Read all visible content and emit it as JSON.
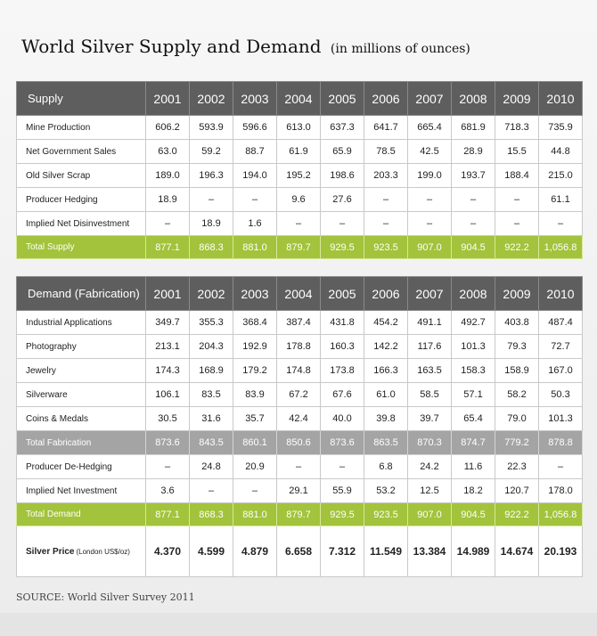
{
  "title": "World Silver Supply and Demand",
  "subtitle": "(in millions of ounces)",
  "supply": {
    "header": [
      "Supply",
      "2001",
      "2002",
      "2003",
      "2004",
      "2005",
      "2006",
      "2007",
      "2008",
      "2009",
      "2010"
    ],
    "rows": [
      [
        "Mine Production",
        "606.2",
        "593.9",
        "596.6",
        "613.0",
        "637.3",
        "641.7",
        "665.4",
        "681.9",
        "718.3",
        "735.9"
      ],
      [
        "Net Government Sales",
        "63.0",
        "59.2",
        "88.7",
        "61.9",
        "65.9",
        "78.5",
        "42.5",
        "28.9",
        "15.5",
        "44.8"
      ],
      [
        "Old Silver Scrap",
        "189.0",
        "196.3",
        "194.0",
        "195.2",
        "198.6",
        "203.3",
        "199.0",
        "193.7",
        "188.4",
        "215.0"
      ],
      [
        "Producer Hedging",
        "18.9",
        "–",
        "–",
        "9.6",
        "27.6",
        "–",
        "–",
        "–",
        "–",
        "61.1"
      ],
      [
        "Implied Net Disinvestment",
        "–",
        "18.9",
        "1.6",
        "–",
        "–",
        "–",
        "–",
        "–",
        "–",
        "–"
      ]
    ],
    "total": [
      "Total Supply",
      "877.1",
      "868.3",
      "881.0",
      "879.7",
      "929.5",
      "923.5",
      "907.0",
      "904.5",
      "922.2",
      "1,056.8"
    ]
  },
  "demand": {
    "header": [
      "Demand (Fabrication)",
      "2001",
      "2002",
      "2003",
      "2004",
      "2005",
      "2006",
      "2007",
      "2008",
      "2009",
      "2010"
    ],
    "rows": [
      [
        "Industrial Applications",
        "349.7",
        "355.3",
        "368.4",
        "387.4",
        "431.8",
        "454.2",
        "491.1",
        "492.7",
        "403.8",
        "487.4"
      ],
      [
        "Photography",
        "213.1",
        "204.3",
        "192.9",
        "178.8",
        "160.3",
        "142.2",
        "117.6",
        "101.3",
        "79.3",
        "72.7"
      ],
      [
        "Jewelry",
        "174.3",
        "168.9",
        "179.2",
        "174.8",
        "173.8",
        "166.3",
        "163.5",
        "158.3",
        "158.9",
        "167.0"
      ],
      [
        "Silverware",
        "106.1",
        "83.5",
        "83.9",
        "67.2",
        "67.6",
        "61.0",
        "58.5",
        "57.1",
        "58.2",
        "50.3"
      ],
      [
        "Coins & Medals",
        "30.5",
        "31.6",
        "35.7",
        "42.4",
        "40.0",
        "39.8",
        "39.7",
        "65.4",
        "79.0",
        "101.3"
      ]
    ],
    "fabrication_total": [
      "Total Fabrication",
      "873.6",
      "843.5",
      "860.1",
      "850.6",
      "873.6",
      "863.5",
      "870.3",
      "874.7",
      "779.2",
      "878.8"
    ],
    "extra_rows": [
      [
        "Producer De-Hedging",
        "–",
        "24.8",
        "20.9",
        "–",
        "–",
        "6.8",
        "24.2",
        "11.6",
        "22.3",
        "–"
      ],
      [
        "Implied Net Investment",
        "3.6",
        "–",
        "–",
        "29.1",
        "55.9",
        "53.2",
        "12.5",
        "18.2",
        "120.7",
        "178.0"
      ]
    ],
    "total": [
      "Total Demand",
      "877.1",
      "868.3",
      "881.0",
      "879.7",
      "929.5",
      "923.5",
      "907.0",
      "904.5",
      "922.2",
      "1,056.8"
    ]
  },
  "silver_price": {
    "label": "Silver Price",
    "unit": "(London US$/oz)",
    "values": [
      "4.370",
      "4.599",
      "4.879",
      "6.658",
      "7.312",
      "11.549",
      "13.384",
      "14.989",
      "14.674",
      "20.193"
    ]
  },
  "source": "SOURCE: World Silver Survey 2011",
  "colors": {
    "header_bg": "#5e5e5e",
    "total_green": "#a2c33b",
    "total_gray": "#a4a4a4"
  }
}
